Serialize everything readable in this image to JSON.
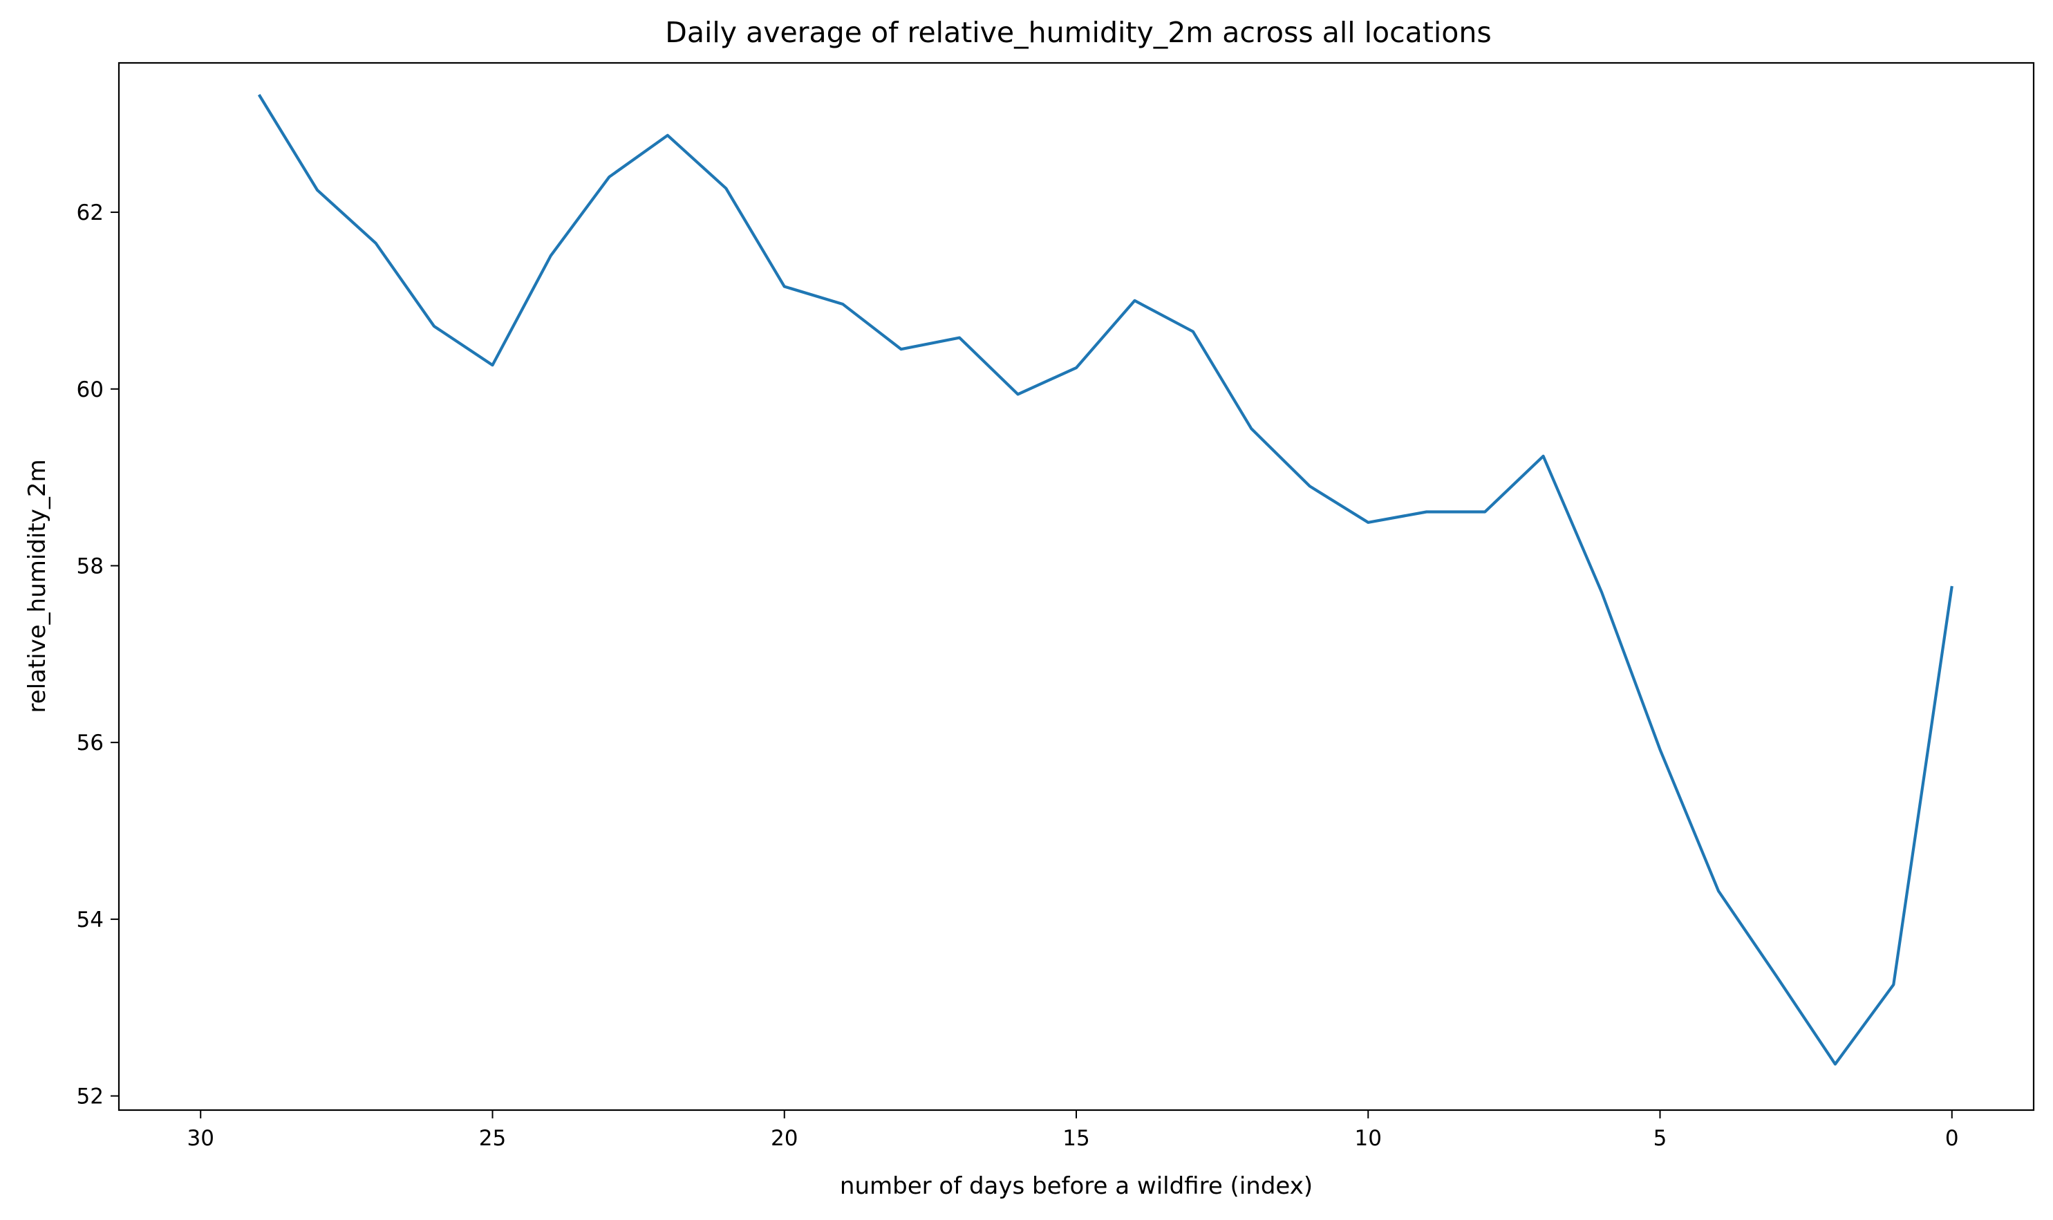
{
  "chart_data": {
    "type": "line",
    "title": "Daily average of relative_humidity_2m across all locations",
    "xlabel": "number of days before a wildfire (index)",
    "ylabel": "relative_humidity_2m",
    "x_axis_inverted": true,
    "xlim": [
      31.4,
      -1.4
    ],
    "ylim": [
      51.84,
      63.69
    ],
    "x_ticks": [
      30,
      25,
      20,
      15,
      10,
      5,
      0
    ],
    "x_tick_labels": [
      "30",
      "25",
      "20",
      "15",
      "10",
      "5",
      "0"
    ],
    "y_ticks": [
      52,
      54,
      56,
      58,
      60,
      62
    ],
    "y_tick_labels": [
      "52",
      "54",
      "56",
      "58",
      "60",
      "62"
    ],
    "grid": false,
    "legend": "none",
    "series": [
      {
        "color": "#1f77b4",
        "x": [
          29,
          28,
          27,
          26,
          25,
          24,
          23,
          22,
          21,
          20,
          19,
          18,
          17,
          16,
          15,
          14,
          13,
          12,
          11,
          10,
          9,
          8,
          7,
          6,
          5,
          4,
          3,
          2,
          1,
          0
        ],
        "y": [
          63.33,
          62.25,
          61.65,
          60.71,
          60.27,
          61.51,
          62.4,
          62.87,
          62.27,
          61.16,
          60.96,
          60.45,
          60.58,
          59.94,
          60.24,
          61.0,
          60.65,
          59.55,
          58.9,
          58.49,
          58.61,
          58.61,
          59.24,
          57.7,
          55.92,
          54.32,
          53.35,
          52.36,
          53.26,
          57.77
        ]
      }
    ]
  }
}
